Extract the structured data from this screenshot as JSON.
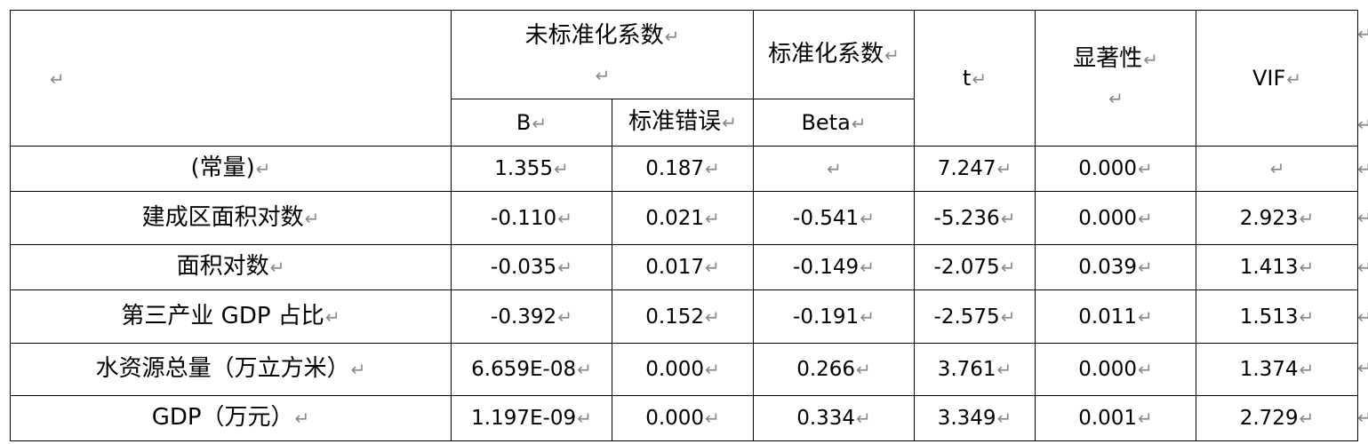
{
  "mark": "↵",
  "header": {
    "unstd_coef": "未标准化系数",
    "std_coef": "标准化系数",
    "t": "t",
    "sig": "显著性",
    "vif": "VIF",
    "b": "B",
    "std_error": "标准错误",
    "beta": "Beta"
  },
  "rows": [
    {
      "label": "(常量)",
      "b": "1.355",
      "se": "0.187",
      "beta": "",
      "t": "7.247",
      "sig": "0.000",
      "vif": ""
    },
    {
      "label": "建成区面积对数",
      "b": "-0.110",
      "se": "0.021",
      "beta": "-0.541",
      "t": "-5.236",
      "sig": "0.000",
      "vif": "2.923"
    },
    {
      "label": "面积对数",
      "b": "-0.035",
      "se": "0.017",
      "beta": "-0.149",
      "t": "-2.075",
      "sig": "0.039",
      "vif": "1.413"
    },
    {
      "label": "第三产业 GDP 占比",
      "b": "-0.392",
      "se": "0.152",
      "beta": "-0.191",
      "t": "-2.575",
      "sig": "0.011",
      "vif": "1.513"
    },
    {
      "label": "水资源总量（万立方米）",
      "b": "6.659E-08",
      "se": "0.000",
      "beta": "0.266",
      "t": "3.761",
      "sig": "0.000",
      "vif": "1.374"
    },
    {
      "label": "GDP（万元）",
      "b": "1.197E-09",
      "se": "0.000",
      "beta": "0.334",
      "t": "3.349",
      "sig": "0.001",
      "vif": "2.729"
    }
  ]
}
